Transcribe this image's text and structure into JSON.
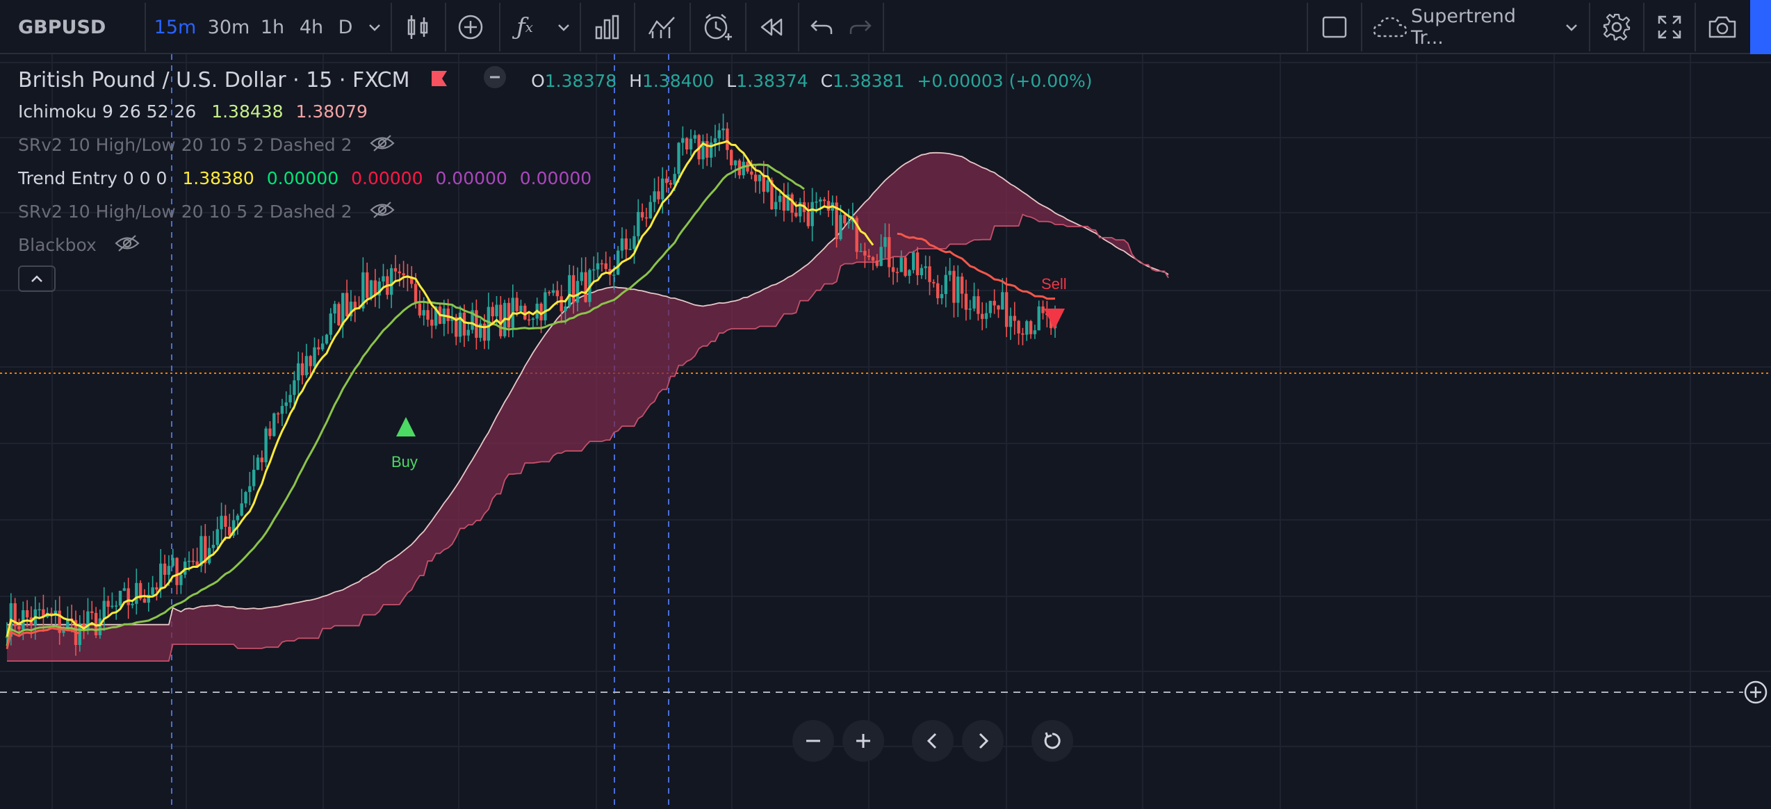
{
  "toolbar": {
    "symbol": "GBPUSD",
    "intervals": [
      "15m",
      "30m",
      "1h",
      "4h",
      "D"
    ],
    "active_interval": "15m",
    "indicator_template": "Supertrend Tr...",
    "accent_color": "#2962ff"
  },
  "legend": {
    "title": "British Pound / U.S. Dollar · 15 · FXCM",
    "ohlc": {
      "o_label": "O",
      "o": "1.38378",
      "h_label": "H",
      "h": "1.38400",
      "l_label": "L",
      "l": "1.38374",
      "c_label": "C",
      "c": "1.38381",
      "change": "+0.00003 (+0.00%)"
    },
    "indicators": [
      {
        "name": "Ichimoku 9 26 52 26",
        "values": [
          "1.38438",
          "1.38079"
        ],
        "colors": [
          "#c6f08a",
          "#f4a3a3"
        ]
      },
      {
        "name": "SRv2 10 High/Low 20 10 5 2 Dashed 2",
        "hidden": true
      },
      {
        "name": "Trend Entry 0 0 0",
        "values": [
          "1.38380",
          "0.00000",
          "0.00000",
          "0.00000",
          "0.00000"
        ],
        "colors": [
          "#ffeb3b",
          "#00e676",
          "#ff1744",
          "#ab47bc",
          "#ab47bc"
        ]
      },
      {
        "name": "SRv2 10 High/Low 20 10 5 2 Dashed 2",
        "hidden": true
      },
      {
        "name": "Blackbox",
        "hidden": true
      }
    ]
  },
  "signals": {
    "buy_label": "Buy",
    "sell_label": "Sell",
    "buy_color": "#4cd964",
    "sell_color": "#f23645"
  },
  "chart_data": {
    "type": "line",
    "series": [
      {
        "name": "",
        "values": [
          1.377,
          1.377,
          1.3768,
          1.3772,
          1.3776,
          1.378,
          1.3786,
          1.38,
          1.3812,
          1.3822,
          1.3826,
          1.3823,
          1.3818,
          1.3819,
          1.3821,
          1.3824,
          1.3826,
          1.3836,
          1.3846,
          1.3849,
          1.3842,
          1.3838,
          1.3836,
          1.3832,
          1.3828,
          1.3825,
          1.3822,
          1.382,
          1.3818
        ]
      }
    ]
  }
}
